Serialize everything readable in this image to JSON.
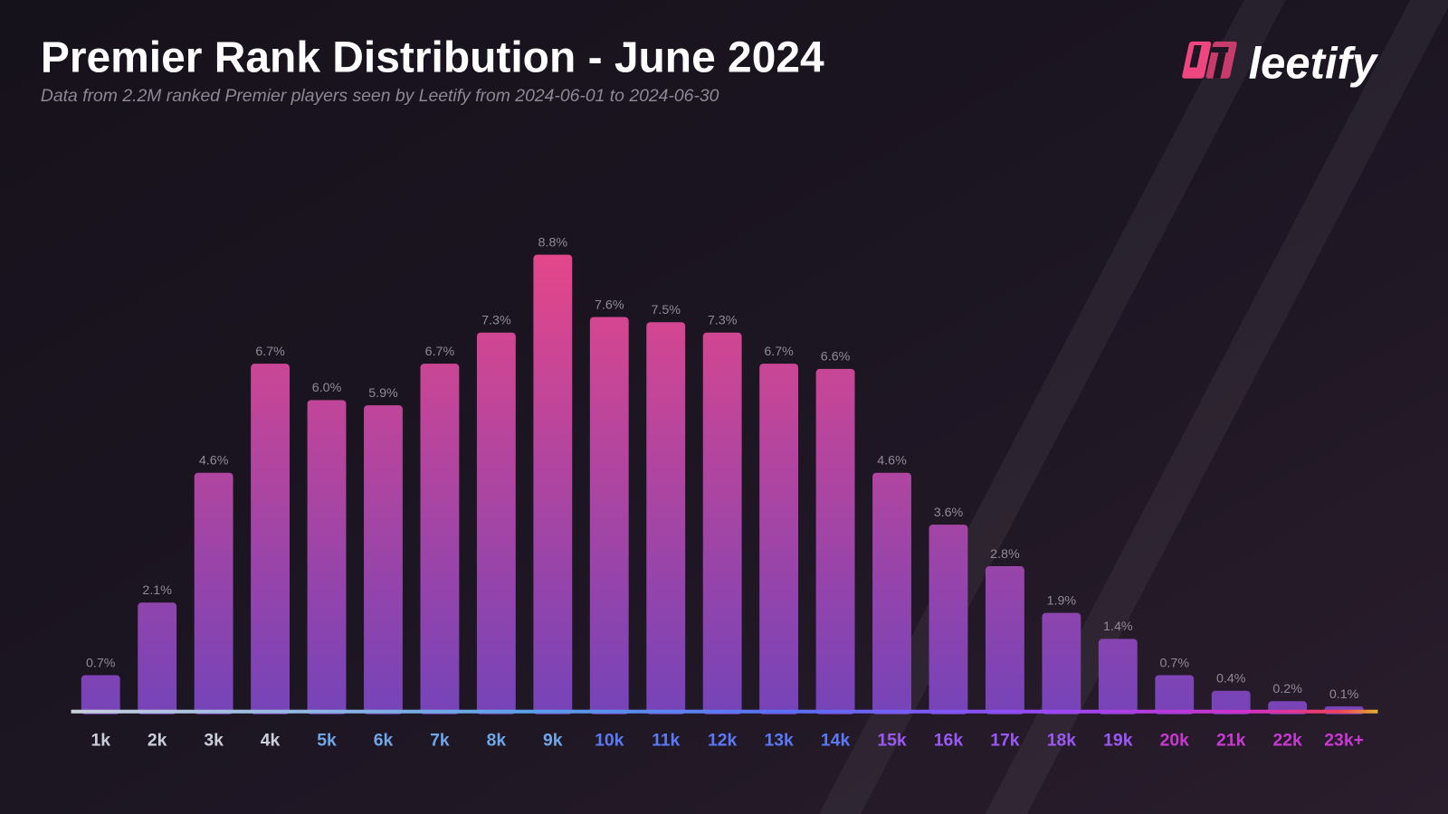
{
  "header": {
    "title": "Premier Rank Distribution - June 2024",
    "subtitle": "Data from 2.2M ranked Premier players seen by Leetify from 2024-06-01 to 2024-06-30"
  },
  "logo": {
    "text": "leetify",
    "mark_color": "#f0467f"
  },
  "colors": {
    "background": "#1a1420",
    "bar_top": "#e4468a",
    "bar_bottom": "#7644b8",
    "value_label": "#8f8a98",
    "tick_groups": [
      "#c9d0dc",
      "#6ea6e6",
      "#5b78f5",
      "#9a58f5",
      "#c838d2"
    ]
  },
  "chart_data": {
    "type": "bar",
    "title": "Premier Rank Distribution - June 2024",
    "subtitle": "Data from 2.2M ranked Premier players seen by Leetify from 2024-06-01 to 2024-06-30",
    "categories": [
      "1k",
      "2k",
      "3k",
      "4k",
      "5k",
      "6k",
      "7k",
      "8k",
      "9k",
      "10k",
      "11k",
      "12k",
      "13k",
      "14k",
      "15k",
      "16k",
      "17k",
      "18k",
      "19k",
      "20k",
      "21k",
      "22k",
      "23k+"
    ],
    "values": [
      0.7,
      2.1,
      4.6,
      6.7,
      6.0,
      5.9,
      6.7,
      7.3,
      8.8,
      7.6,
      7.5,
      7.3,
      6.7,
      6.6,
      4.6,
      3.6,
      2.8,
      1.9,
      1.4,
      0.7,
      0.4,
      0.2,
      0.1
    ],
    "labels": [
      "0.7%",
      "2.1%",
      "4.6%",
      "6.7%",
      "6.0%",
      "5.9%",
      "6.7%",
      "7.3%",
      "8.8%",
      "7.6%",
      "7.5%",
      "7.3%",
      "6.7%",
      "6.6%",
      "4.6%",
      "3.6%",
      "2.8%",
      "1.9%",
      "1.4%",
      "0.7%",
      "0.4%",
      "0.2%",
      "0.1%"
    ],
    "unit": "%",
    "xlabel": "",
    "ylabel": "",
    "grid": false,
    "y_axis_visible": false
  }
}
